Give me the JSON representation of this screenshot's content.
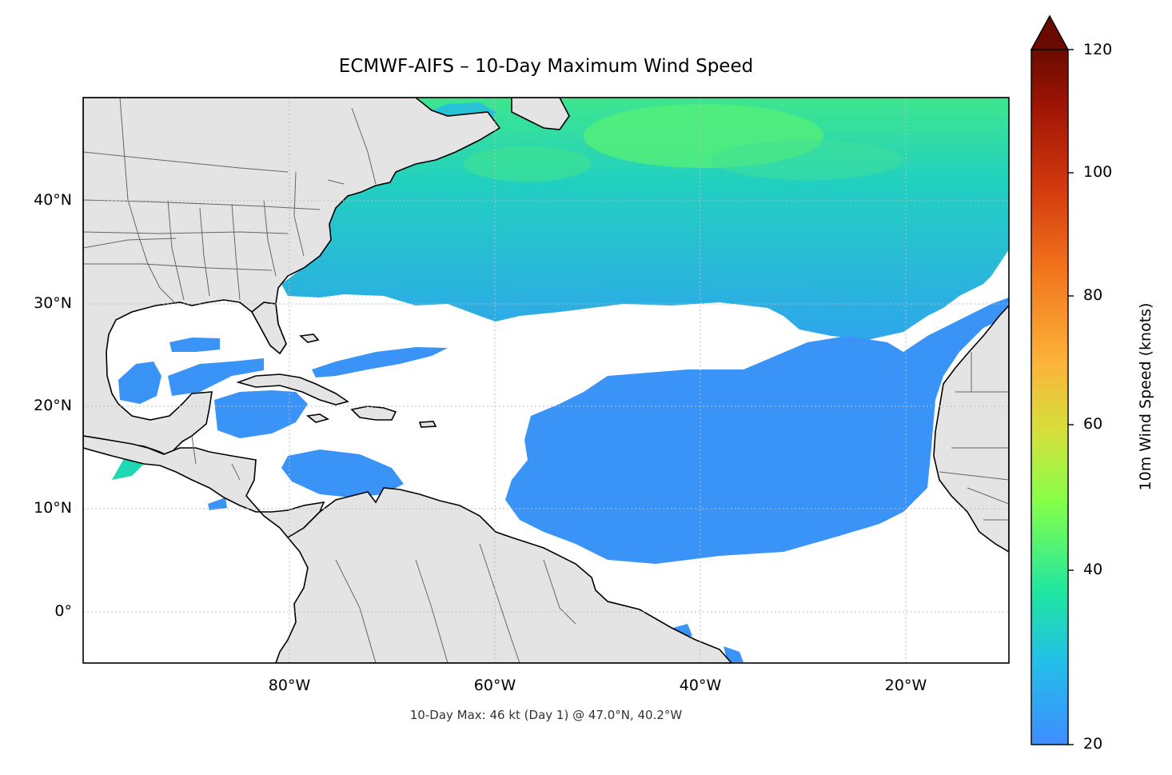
{
  "title": "ECMWF-AIFS – 10-Day Maximum Wind Speed",
  "footer": "10-Day Max: 46 kt (Day 1) @ 47.0°N, 40.2°W",
  "axes": {
    "x_ticks": [
      "80°W",
      "60°W",
      "40°W",
      "20°W"
    ],
    "y_ticks": [
      "40°N",
      "30°N",
      "20°N",
      "10°N",
      "0°"
    ]
  },
  "colorbar": {
    "label": "10m Wind Speed (knots)",
    "ticks": [
      "120",
      "100",
      "80",
      "60",
      "40",
      "20"
    ],
    "range": [
      20,
      120
    ],
    "extend": "max",
    "colors": [
      "#3f8cff",
      "#23bfe8",
      "#1fe6a0",
      "#86ff4a",
      "#d6e03c",
      "#fbb33a",
      "#f3761d",
      "#d33a0e",
      "#9e1405",
      "#6b0b00"
    ]
  },
  "map": {
    "extent": {
      "lon": [
        -100,
        -10
      ],
      "lat": [
        -5,
        50
      ]
    },
    "land_color": "#e4e4e4",
    "ocean_color": "#ffffff",
    "wind_colors": {
      "low": "#3a93f6",
      "mid": "#1ec8d2",
      "high": "#3ee68e",
      "peak": "#66f56a"
    }
  },
  "max_point": {
    "value_kt": 46,
    "day": 1,
    "lat": 47.0,
    "lon": -40.2
  }
}
